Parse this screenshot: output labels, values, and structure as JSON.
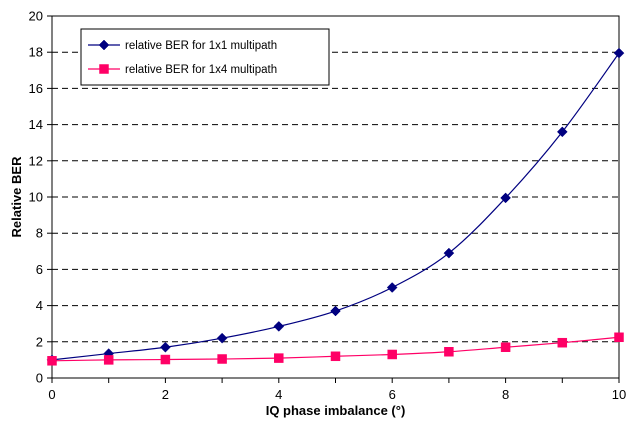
{
  "chart_data": {
    "type": "line",
    "title": "",
    "xlabel": "IQ phase imbalance (°)",
    "ylabel": "Relative BER",
    "xlim": [
      0,
      10
    ],
    "ylim": [
      0,
      20
    ],
    "x_ticks": [
      0,
      2,
      4,
      6,
      8,
      10
    ],
    "y_ticks": [
      0,
      2,
      4,
      6,
      8,
      10,
      12,
      14,
      16,
      18,
      20
    ],
    "grid": "horizontal dashed",
    "legend_position": "top-left",
    "x": [
      0,
      1,
      2,
      3,
      4,
      5,
      6,
      7,
      8,
      9,
      10
    ],
    "series": [
      {
        "name": "relative BER for 1x1 multipath",
        "values": [
          1.0,
          1.35,
          1.7,
          2.2,
          2.85,
          3.7,
          5.0,
          6.9,
          9.95,
          13.6,
          17.95
        ],
        "color": "#000080",
        "marker": "diamond"
      },
      {
        "name": "relative BER for 1x4 multipath",
        "values": [
          0.95,
          1.0,
          1.02,
          1.05,
          1.1,
          1.2,
          1.3,
          1.45,
          1.7,
          1.95,
          2.25
        ],
        "color": "#FF0066",
        "marker": "square"
      }
    ]
  }
}
